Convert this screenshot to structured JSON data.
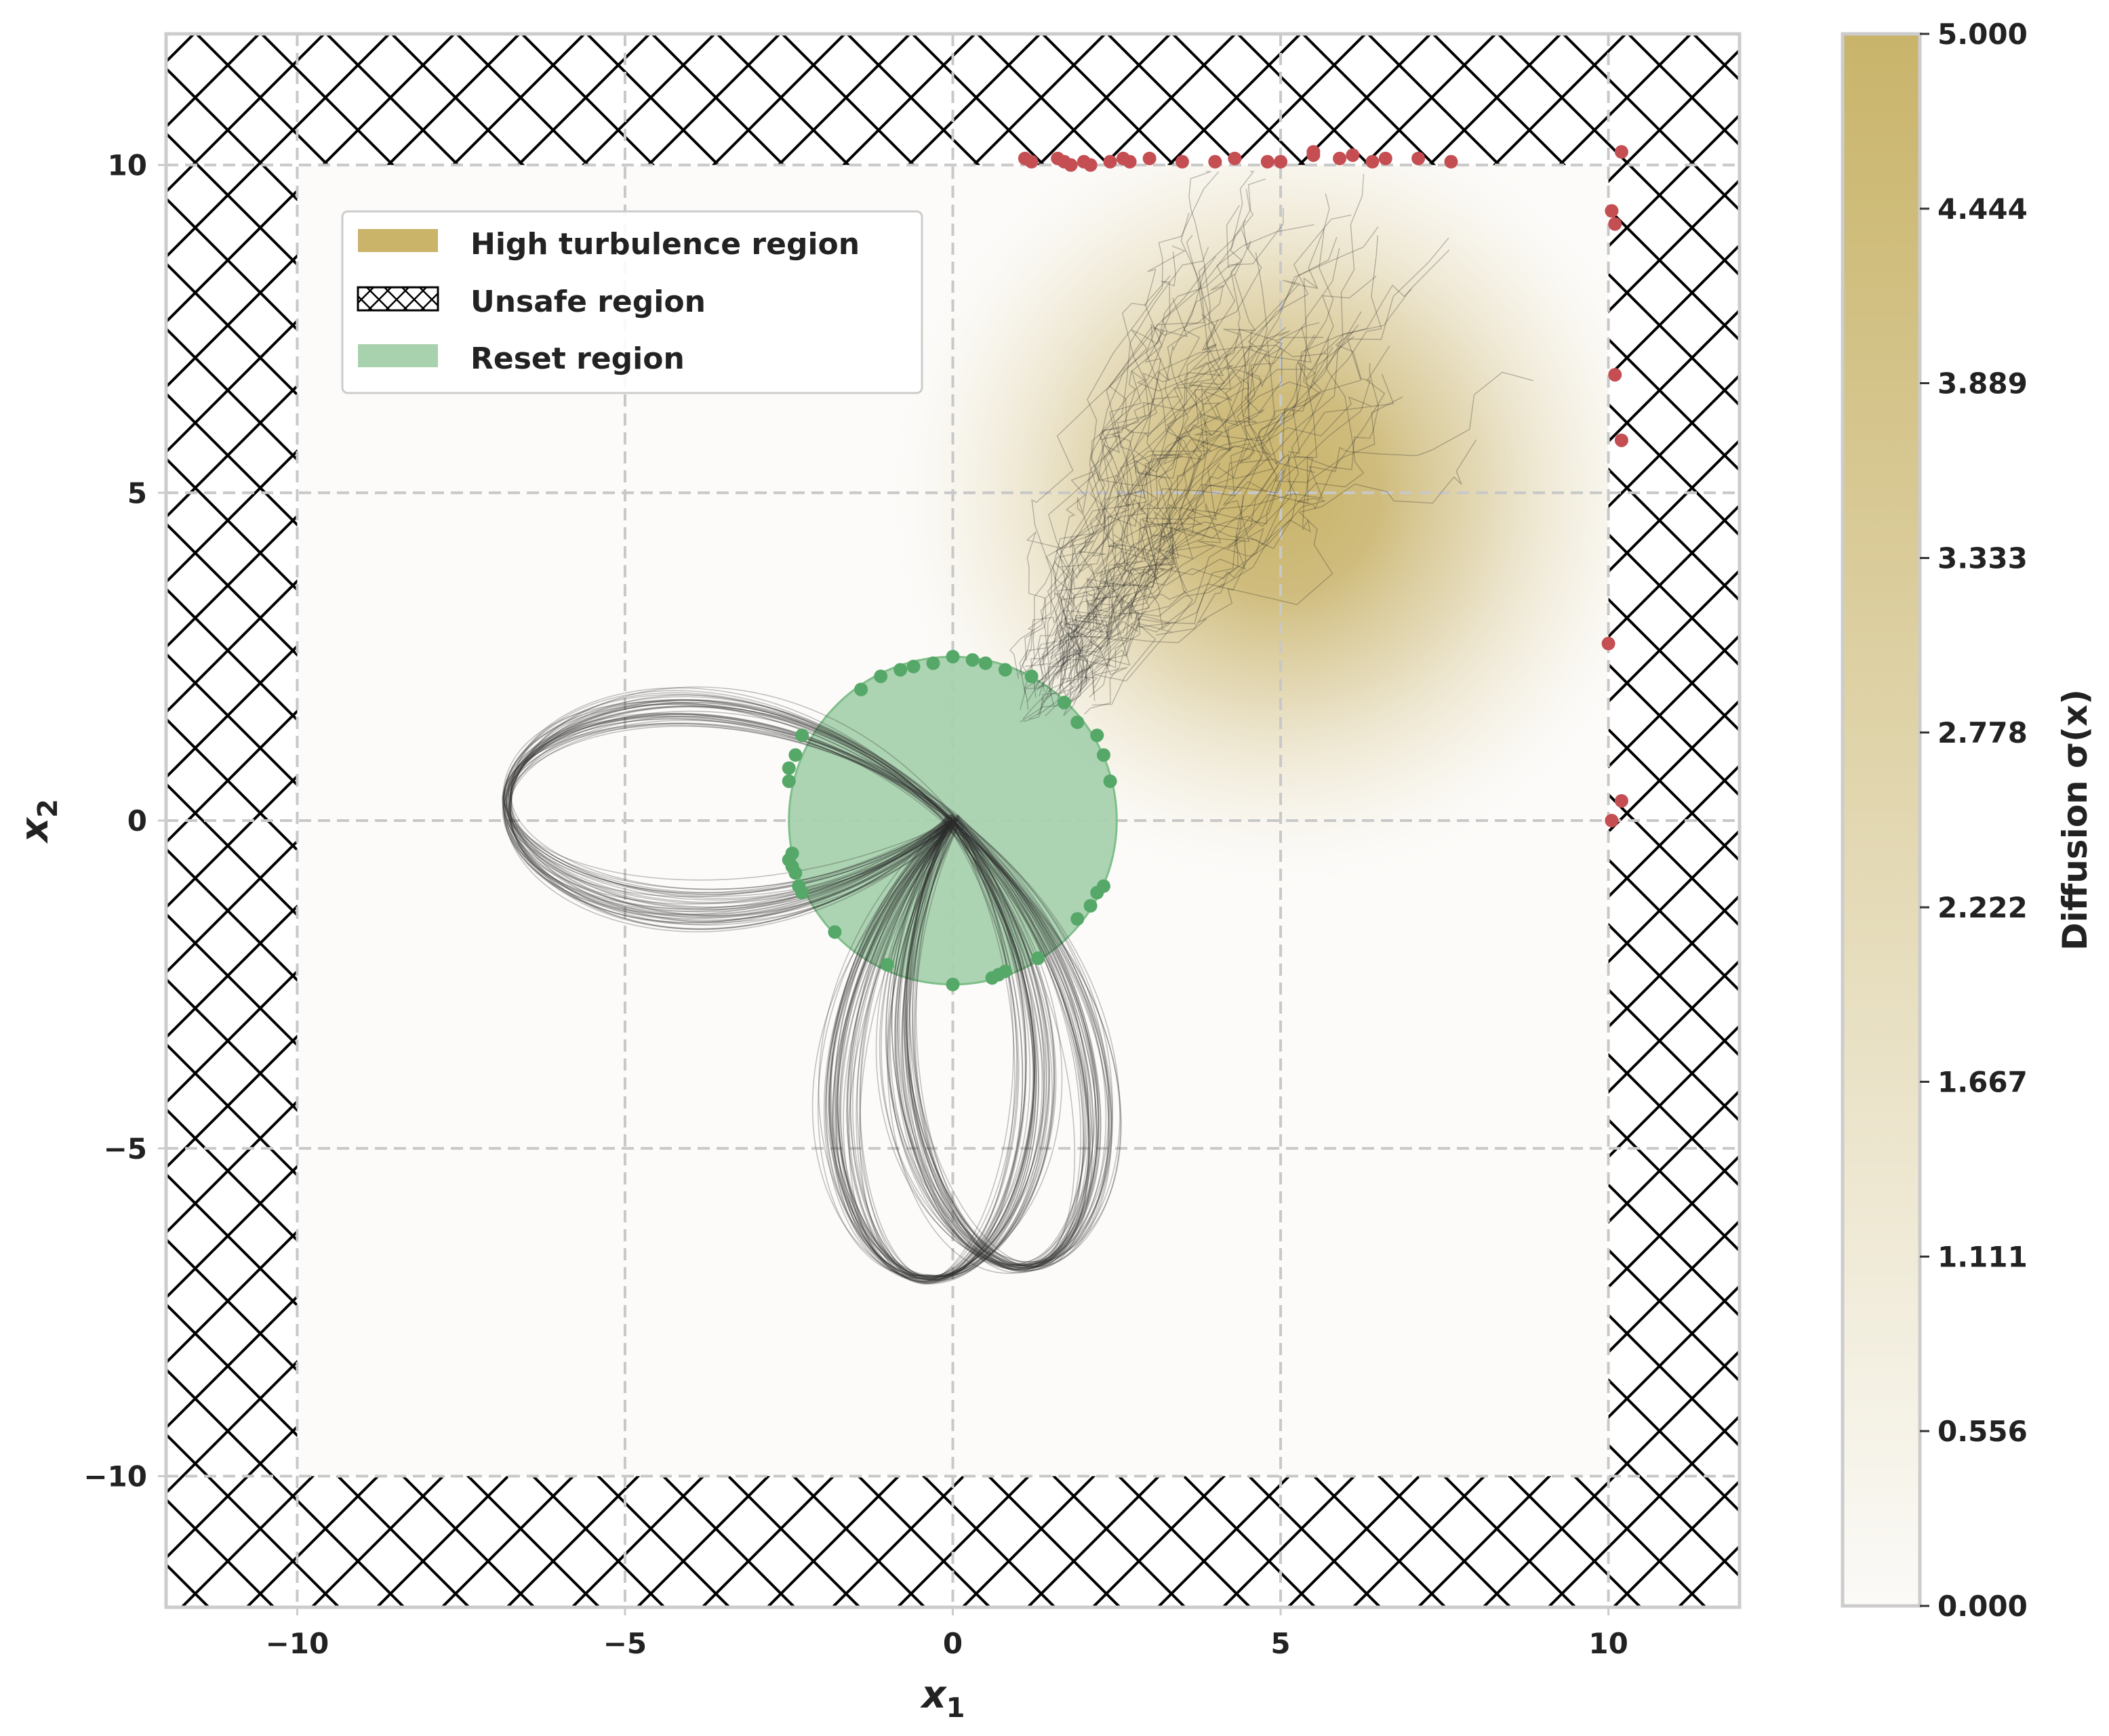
{
  "chart_data": {
    "type": "scatter",
    "xlabel": "x",
    "xlabel_sub": "1",
    "ylabel": "x",
    "ylabel_sub": "2",
    "xlim": [
      -12,
      12
    ],
    "ylim": [
      -12,
      12
    ],
    "xticks": [
      -10,
      -5,
      0,
      5,
      10
    ],
    "yticks": [
      -10,
      -5,
      0,
      5,
      10
    ],
    "xtick_labels": [
      "−10",
      "−5",
      "0",
      "5",
      "10"
    ],
    "ytick_labels": [
      "−10",
      "−5",
      "0",
      "5",
      "10"
    ],
    "grid": true,
    "safe_box": {
      "x": [
        -10,
        10
      ],
      "y": [
        -10,
        10
      ]
    },
    "legend": {
      "placement": "upper-left",
      "entries": [
        {
          "label": "High turbulence region",
          "kind": "patch",
          "color": "#c9b46a"
        },
        {
          "label": "Unsafe region",
          "kind": "hatch",
          "color": "#000000"
        },
        {
          "label": "Reset region",
          "kind": "patch",
          "color": "#a8d1ae"
        }
      ]
    },
    "turbulence": {
      "center": [
        5,
        5
      ],
      "sigma_max": 5.0,
      "spread": 2.8
    },
    "reset_region": {
      "center": [
        0,
        0
      ],
      "radius": 2.5,
      "color": "#a8d1ae"
    },
    "loops": [
      {
        "name": "left lobe",
        "tip": [
          -6.8,
          0.3
        ]
      },
      {
        "name": "lower-left lobe",
        "tip": [
          -0.4,
          -7.0
        ]
      },
      {
        "name": "lower-right lobe",
        "tip": [
          1.2,
          -6.8
        ]
      }
    ],
    "reset_points": [
      [
        -1.4,
        2.0
      ],
      [
        -1.1,
        2.2
      ],
      [
        -0.8,
        2.3
      ],
      [
        -0.6,
        2.35
      ],
      [
        -0.3,
        2.4
      ],
      [
        0,
        2.5
      ],
      [
        0.3,
        2.45
      ],
      [
        0.5,
        2.4
      ],
      [
        0.8,
        2.3
      ],
      [
        1.2,
        2.2
      ],
      [
        1.7,
        1.8
      ],
      [
        1.9,
        1.5
      ],
      [
        2.2,
        1.3
      ],
      [
        2.3,
        1.0
      ],
      [
        2.4,
        0.6
      ],
      [
        -2.3,
        1.3
      ],
      [
        -2.4,
        1.0
      ],
      [
        -2.5,
        0.8
      ],
      [
        -2.5,
        0.6
      ],
      [
        -2.45,
        -0.5
      ],
      [
        -2.5,
        -0.6
      ],
      [
        -2.45,
        -0.7
      ],
      [
        -2.4,
        -0.8
      ],
      [
        -2.35,
        -1.0
      ],
      [
        -2.3,
        -1.1
      ],
      [
        -1.8,
        -1.7
      ],
      [
        -1.0,
        -2.2
      ],
      [
        0,
        -2.5
      ],
      [
        0.6,
        -2.4
      ],
      [
        0.7,
        -2.35
      ],
      [
        0.8,
        -2.3
      ],
      [
        1.3,
        -2.1
      ],
      [
        1.9,
        -1.5
      ],
      [
        2.1,
        -1.3
      ],
      [
        2.2,
        -1.1
      ],
      [
        2.3,
        -1.0
      ]
    ],
    "failure_points": [
      [
        1.1,
        10.1
      ],
      [
        1.2,
        10.05
      ],
      [
        1.6,
        10.1
      ],
      [
        1.7,
        10.05
      ],
      [
        1.8,
        10.0
      ],
      [
        2.0,
        10.05
      ],
      [
        2.1,
        10.0
      ],
      [
        2.4,
        10.05
      ],
      [
        2.6,
        10.1
      ],
      [
        2.7,
        10.05
      ],
      [
        3.0,
        10.1
      ],
      [
        3.5,
        10.05
      ],
      [
        4.0,
        10.05
      ],
      [
        4.3,
        10.1
      ],
      [
        4.8,
        10.05
      ],
      [
        5.0,
        10.05
      ],
      [
        5.5,
        10.15
      ],
      [
        5.5,
        10.2
      ],
      [
        5.9,
        10.1
      ],
      [
        6.1,
        10.15
      ],
      [
        6.4,
        10.05
      ],
      [
        6.6,
        10.1
      ],
      [
        7.1,
        10.1
      ],
      [
        7.6,
        10.05
      ],
      [
        10.2,
        10.2
      ],
      [
        10.05,
        9.3
      ],
      [
        10.1,
        9.1
      ],
      [
        10.1,
        6.8
      ],
      [
        10.2,
        5.8
      ],
      [
        10.0,
        2.7
      ],
      [
        10.2,
        0.3
      ],
      [
        10.05,
        0.0
      ]
    ],
    "colorbar": {
      "label": "Diffusion σ(x)",
      "range": [
        0,
        5
      ],
      "tick_values": [
        0,
        0.556,
        1.111,
        1.667,
        2.222,
        2.778,
        3.333,
        3.889,
        4.444,
        5.0
      ],
      "tick_labels": [
        "0.000",
        "0.556",
        "1.111",
        "1.667",
        "2.222",
        "2.778",
        "3.333",
        "3.889",
        "4.444",
        "5.000"
      ],
      "color_low": "#fbfaf7",
      "color_high": "#c9b46a"
    }
  }
}
